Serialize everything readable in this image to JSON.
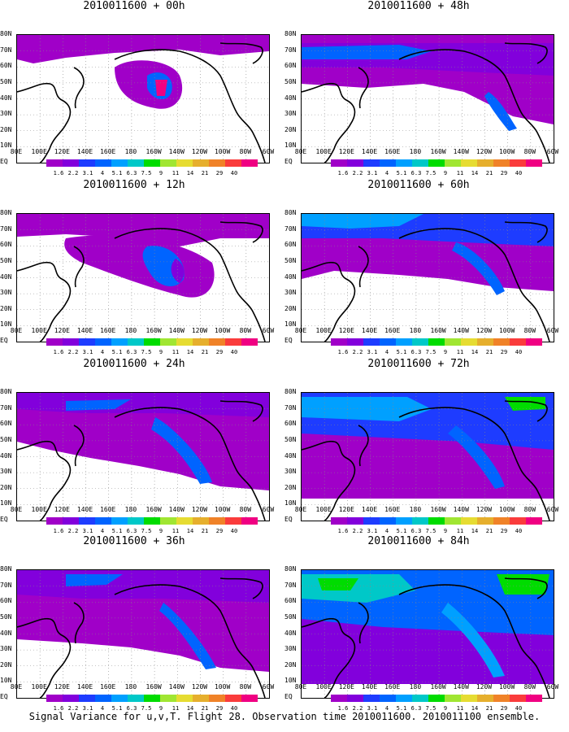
{
  "panels": [
    {
      "title": "2010011600 + 00h"
    },
    {
      "title": "2010011600 + 48h"
    },
    {
      "title": "2010011600 + 12h"
    },
    {
      "title": "2010011600 + 60h"
    },
    {
      "title": "2010011600 + 24h"
    },
    {
      "title": "2010011600 + 72h"
    },
    {
      "title": "2010011600 + 36h"
    },
    {
      "title": "2010011600 + 84h"
    }
  ],
  "lat_labels": [
    "80N",
    "70N",
    "60N",
    "50N",
    "40N",
    "30N",
    "20N",
    "10N",
    "EQ"
  ],
  "lon_labels": [
    "80E",
    "100E",
    "120E",
    "140E",
    "160E",
    "180",
    "160W",
    "140W",
    "120W",
    "100W",
    "80W",
    "60W"
  ],
  "colorbar": {
    "labels": [
      "1.6",
      "2.2",
      "3.1",
      "4",
      "5.1",
      "6.3",
      "7.5",
      "9",
      "11",
      "14",
      "21",
      "29",
      "40"
    ],
    "colors": [
      "#a000c8",
      "#8200dc",
      "#1e3cff",
      "#0064ff",
      "#00a0ff",
      "#00c8c8",
      "#00dc00",
      "#a0e632",
      "#e6dc32",
      "#e6af2d",
      "#f08228",
      "#fa3c3c",
      "#f00082"
    ]
  },
  "caption": "Signal Variance for u,v,T. Flight 28. Observation time 2010011600. 2010011100 ensemble."
}
